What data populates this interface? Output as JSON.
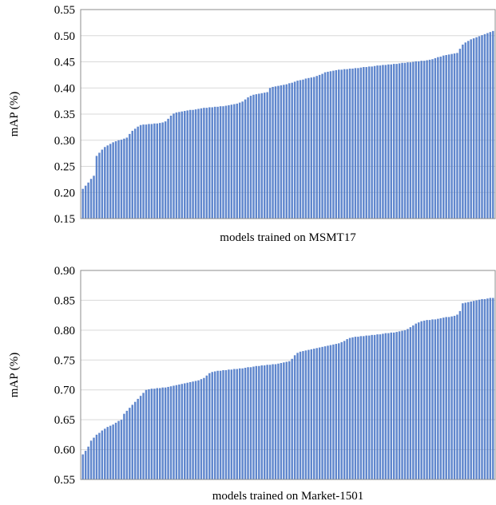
{
  "colors": {
    "bar": "#4472C4",
    "grid": "#d9d9d9",
    "axis": "#8c8c8c",
    "text": "#000000"
  },
  "chart_data": [
    {
      "type": "bar",
      "title": "",
      "xlabel": "models trained on MSMT17",
      "ylabel": "mAP (%)",
      "ylim": [
        0.15,
        0.55
      ],
      "yticks": [
        "0.15",
        "0.20",
        "0.25",
        "0.30",
        "0.35",
        "0.40",
        "0.45",
        "0.50",
        "0.55"
      ],
      "grid": true,
      "x_tick_labels": false,
      "bar_count": 150,
      "values_note": "sorted ascending",
      "values": [
        0.207,
        0.213,
        0.219,
        0.226,
        0.232,
        0.27,
        0.276,
        0.282,
        0.287,
        0.29,
        0.293,
        0.296,
        0.298,
        0.3,
        0.301,
        0.303,
        0.305,
        0.312,
        0.318,
        0.322,
        0.326,
        0.329,
        0.33,
        0.33,
        0.331,
        0.331,
        0.332,
        0.332,
        0.333,
        0.334,
        0.336,
        0.341,
        0.347,
        0.351,
        0.353,
        0.354,
        0.355,
        0.356,
        0.357,
        0.358,
        0.358,
        0.359,
        0.36,
        0.361,
        0.362,
        0.362,
        0.363,
        0.363,
        0.364,
        0.364,
        0.365,
        0.365,
        0.366,
        0.367,
        0.368,
        0.369,
        0.37,
        0.372,
        0.374,
        0.378,
        0.382,
        0.385,
        0.387,
        0.388,
        0.389,
        0.39,
        0.391,
        0.392,
        0.4,
        0.402,
        0.403,
        0.404,
        0.405,
        0.406,
        0.407,
        0.409,
        0.41,
        0.412,
        0.414,
        0.415,
        0.416,
        0.418,
        0.419,
        0.42,
        0.421,
        0.423,
        0.425,
        0.427,
        0.43,
        0.431,
        0.432,
        0.433,
        0.434,
        0.435,
        0.435,
        0.436,
        0.436,
        0.437,
        0.437,
        0.438,
        0.438,
        0.439,
        0.44,
        0.44,
        0.441,
        0.441,
        0.442,
        0.443,
        0.443,
        0.444,
        0.444,
        0.445,
        0.445,
        0.446,
        0.446,
        0.447,
        0.448,
        0.448,
        0.449,
        0.449,
        0.45,
        0.451,
        0.451,
        0.452,
        0.452,
        0.453,
        0.454,
        0.455,
        0.457,
        0.459,
        0.46,
        0.462,
        0.463,
        0.464,
        0.465,
        0.466,
        0.467,
        0.475,
        0.483,
        0.487,
        0.49,
        0.493,
        0.495,
        0.497,
        0.499,
        0.501,
        0.503,
        0.505,
        0.507,
        0.509
      ]
    },
    {
      "type": "bar",
      "title": "",
      "xlabel": "models trained on Market-1501",
      "ylabel": "mAP (%)",
      "ylim": [
        0.55,
        0.9
      ],
      "yticks": [
        "0.55",
        "0.60",
        "0.65",
        "0.70",
        "0.75",
        "0.80",
        "0.85",
        "0.90"
      ],
      "grid": true,
      "x_tick_labels": false,
      "bar_count": 150,
      "values_note": "sorted ascending",
      "values": [
        0.592,
        0.598,
        0.605,
        0.615,
        0.62,
        0.625,
        0.628,
        0.632,
        0.635,
        0.638,
        0.64,
        0.642,
        0.645,
        0.648,
        0.65,
        0.66,
        0.665,
        0.67,
        0.675,
        0.68,
        0.685,
        0.69,
        0.695,
        0.7,
        0.701,
        0.702,
        0.702,
        0.703,
        0.703,
        0.704,
        0.704,
        0.705,
        0.706,
        0.707,
        0.708,
        0.709,
        0.71,
        0.711,
        0.712,
        0.713,
        0.714,
        0.715,
        0.716,
        0.718,
        0.72,
        0.724,
        0.728,
        0.73,
        0.731,
        0.732,
        0.732,
        0.733,
        0.733,
        0.734,
        0.734,
        0.735,
        0.735,
        0.736,
        0.736,
        0.737,
        0.738,
        0.738,
        0.739,
        0.74,
        0.74,
        0.741,
        0.741,
        0.742,
        0.742,
        0.743,
        0.743,
        0.744,
        0.745,
        0.746,
        0.747,
        0.748,
        0.752,
        0.758,
        0.762,
        0.764,
        0.765,
        0.766,
        0.767,
        0.768,
        0.769,
        0.77,
        0.771,
        0.772,
        0.773,
        0.774,
        0.775,
        0.776,
        0.777,
        0.778,
        0.78,
        0.782,
        0.785,
        0.787,
        0.788,
        0.789,
        0.789,
        0.79,
        0.79,
        0.791,
        0.791,
        0.792,
        0.792,
        0.793,
        0.793,
        0.794,
        0.795,
        0.795,
        0.796,
        0.796,
        0.797,
        0.798,
        0.799,
        0.8,
        0.802,
        0.805,
        0.808,
        0.811,
        0.813,
        0.815,
        0.816,
        0.817,
        0.817,
        0.818,
        0.818,
        0.819,
        0.82,
        0.821,
        0.822,
        0.822,
        0.823,
        0.824,
        0.826,
        0.832,
        0.845,
        0.846,
        0.847,
        0.848,
        0.849,
        0.85,
        0.851,
        0.852,
        0.852,
        0.853,
        0.854,
        0.854
      ]
    }
  ]
}
